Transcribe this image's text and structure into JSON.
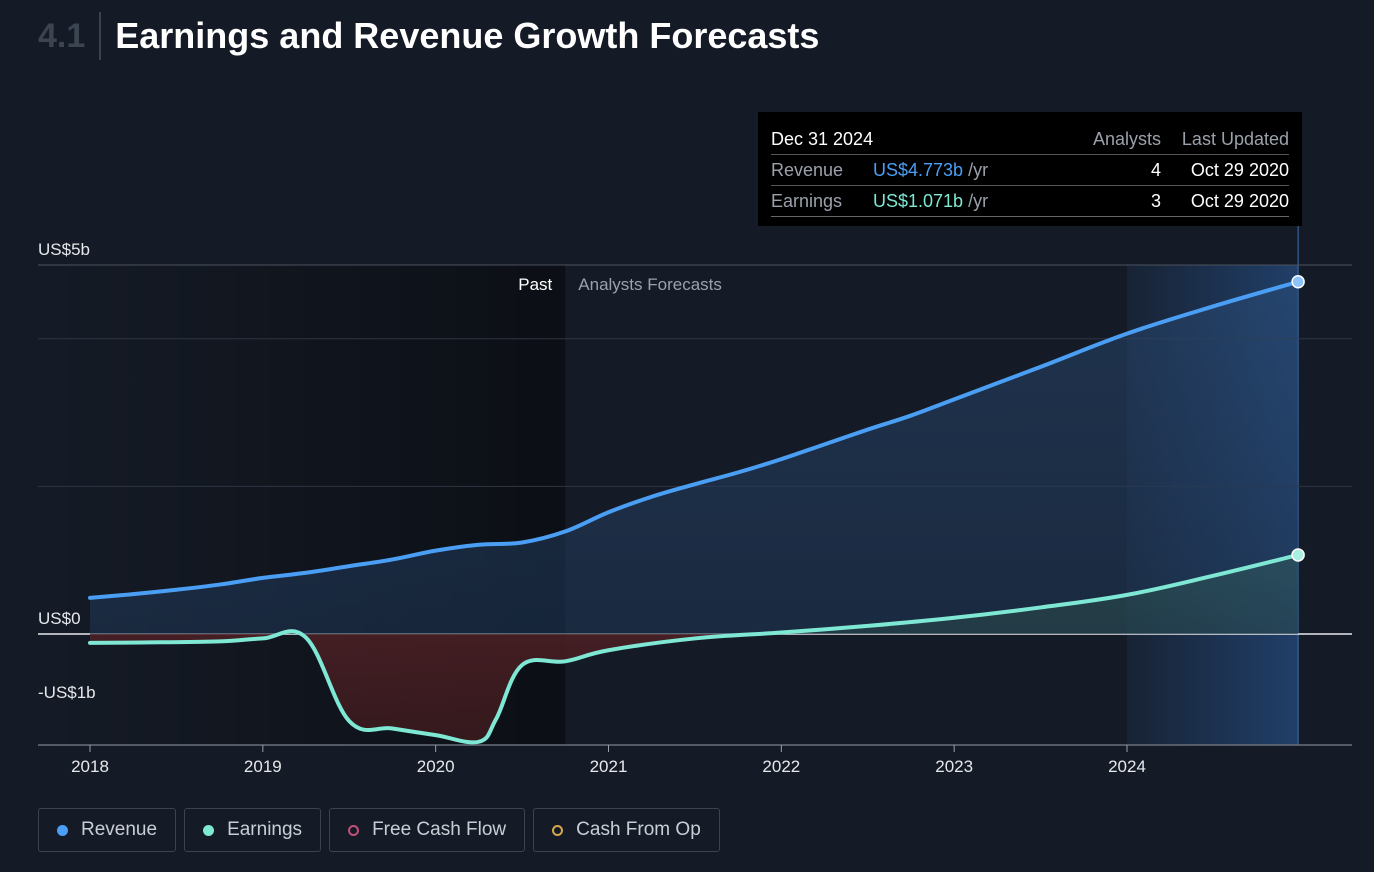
{
  "header": {
    "section_number": "4.1",
    "title": "Earnings and Revenue Growth Forecasts"
  },
  "tooltip": {
    "date": "Dec 31 2024",
    "col_analysts": "Analysts",
    "col_updated": "Last Updated",
    "rows": [
      {
        "label": "Revenue",
        "value": "US$4.773b",
        "unit": "/yr",
        "analysts": "4",
        "updated": "Oct 29 2020",
        "color": "#4a9ff5"
      },
      {
        "label": "Earnings",
        "value": "US$1.071b",
        "unit": "/yr",
        "analysts": "3",
        "updated": "Oct 29 2020",
        "color": "#7ee8d4"
      }
    ]
  },
  "legend": [
    {
      "label": "Revenue",
      "color": "#4a9ff5",
      "filled": true
    },
    {
      "label": "Earnings",
      "color": "#7ee8d4",
      "filled": true
    },
    {
      "label": "Free Cash Flow",
      "color": "#c0507a",
      "filled": false
    },
    {
      "label": "Cash From Op",
      "color": "#d4a84a",
      "filled": false
    }
  ],
  "chart_data": {
    "type": "line",
    "region_labels": {
      "past": "Past",
      "forecast": "Analysts Forecasts"
    },
    "y_ticks": [
      {
        "value": 5,
        "label": "US$5b"
      },
      {
        "value": 0,
        "label": "US$0"
      },
      {
        "value": -1,
        "label": "-US$1b"
      }
    ],
    "ylim": [
      -1.5,
      5.2
    ],
    "xlim": [
      2018,
      2025.2
    ],
    "x_ticks": [
      2018,
      2019,
      2020,
      2021,
      2022,
      2023,
      2024
    ],
    "past_end": 2020.75,
    "series": [
      {
        "name": "Revenue",
        "color": "#4a9ff5",
        "x": [
          2018.0,
          2018.25,
          2018.5,
          2018.75,
          2019.0,
          2019.25,
          2019.5,
          2019.75,
          2020.0,
          2020.25,
          2020.5,
          2020.75,
          2021.0,
          2021.25,
          2021.5,
          2021.75,
          2022.0,
          2022.25,
          2022.5,
          2022.75,
          2023.0,
          2023.5,
          2024.0,
          2024.5,
          2024.99
        ],
        "values": [
          0.49,
          0.54,
          0.6,
          0.67,
          0.76,
          0.83,
          0.92,
          1.01,
          1.13,
          1.21,
          1.24,
          1.39,
          1.65,
          1.86,
          2.03,
          2.19,
          2.37,
          2.57,
          2.77,
          2.96,
          3.18,
          3.62,
          4.07,
          4.44,
          4.773
        ]
      },
      {
        "name": "Earnings",
        "color": "#7ee8d4",
        "x": [
          2018.0,
          2018.3,
          2018.75,
          2019.0,
          2019.25,
          2019.5,
          2019.75,
          2020.0,
          2020.25,
          2020.35,
          2020.5,
          2020.75,
          2021.0,
          2021.5,
          2022.0,
          2022.5,
          2023.0,
          2023.5,
          2024.0,
          2024.5,
          2024.99
        ],
        "values": [
          -0.12,
          -0.115,
          -0.1,
          -0.06,
          -0.05,
          -1.18,
          -1.28,
          -1.37,
          -1.46,
          -1.15,
          -0.42,
          -0.37,
          -0.22,
          -0.06,
          0.02,
          0.11,
          0.22,
          0.36,
          0.53,
          0.79,
          1.071
        ]
      }
    ]
  }
}
